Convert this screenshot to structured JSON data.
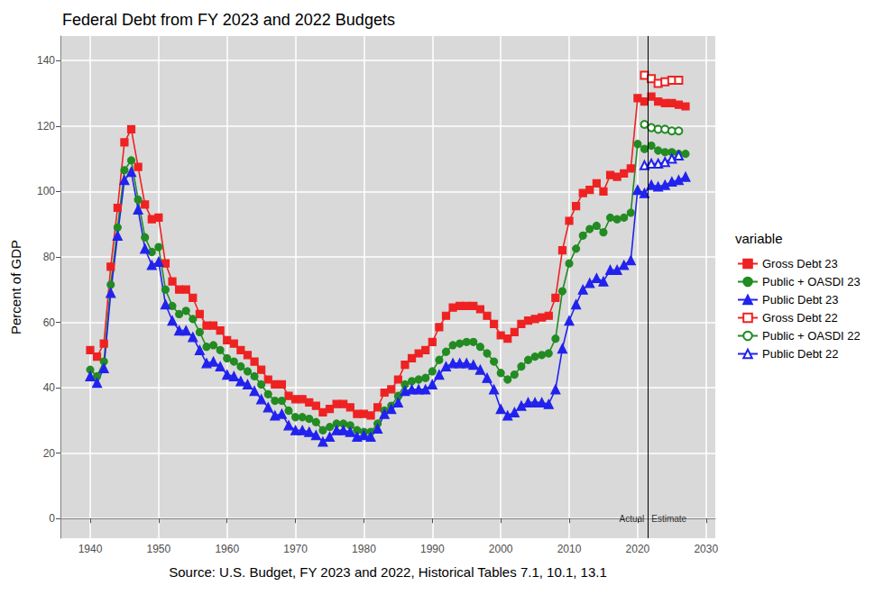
{
  "chart_data": {
    "type": "line",
    "title": "Federal Debt from FY 2023 and 2022 Budgets",
    "x_label": "Source: U.S. Budget, FY 2023 and 2022, Historical Tables 7.1, 10.1, 13.1",
    "y_label": "Percent of GDP",
    "legend_title": "variable",
    "legend": "right",
    "grid": true,
    "xlim": [
      1935.65,
      2031.35
    ],
    "xticks": [
      1940,
      1950,
      1960,
      1970,
      1980,
      1990,
      2000,
      2010,
      2020,
      2030
    ],
    "ylim": [
      -6,
      147.5
    ],
    "yticks": [
      0,
      20,
      40,
      60,
      80,
      100,
      120,
      140
    ],
    "x": [
      1940,
      1941,
      1942,
      1943,
      1944,
      1945,
      1946,
      1947,
      1948,
      1949,
      1950,
      1951,
      1952,
      1953,
      1954,
      1955,
      1956,
      1957,
      1958,
      1959,
      1960,
      1961,
      1962,
      1963,
      1964,
      1965,
      1966,
      1967,
      1968,
      1969,
      1970,
      1971,
      1972,
      1973,
      1974,
      1975,
      1976,
      1977,
      1978,
      1979,
      1980,
      1981,
      1982,
      1983,
      1984,
      1985,
      1986,
      1987,
      1988,
      1989,
      1990,
      1991,
      1992,
      1993,
      1994,
      1995,
      1996,
      1997,
      1998,
      1999,
      2000,
      2001,
      2002,
      2003,
      2004,
      2005,
      2006,
      2007,
      2008,
      2009,
      2010,
      2011,
      2012,
      2013,
      2014,
      2015,
      2016,
      2017,
      2018,
      2019,
      2020,
      2021,
      2022,
      2023,
      2024,
      2025,
      2026,
      2027
    ],
    "series": [
      {
        "name": "Gross Debt 23",
        "color": "#ee2222",
        "marker": "square",
        "line_style": "solid",
        "values": [
          51.5,
          49.5,
          53.5,
          77,
          95,
          115,
          119,
          107.5,
          96,
          91.5,
          92,
          78,
          72.5,
          70,
          70,
          67.5,
          62.5,
          59,
          59,
          57.5,
          54.5,
          53.5,
          51.5,
          50,
          48,
          45.5,
          42.5,
          41,
          41,
          37.5,
          36.5,
          36.5,
          35.5,
          34.5,
          32.5,
          33.5,
          35,
          35,
          34,
          32,
          32,
          31.5,
          34,
          38.5,
          39.5,
          42.5,
          47,
          49,
          50.5,
          51.5,
          54,
          58.5,
          62,
          64.5,
          65,
          65,
          65,
          64,
          62,
          59.5,
          56,
          55,
          57,
          59.5,
          60.5,
          61,
          61.5,
          62,
          67.5,
          82,
          91,
          95.5,
          99.5,
          100.5,
          102.5,
          100,
          105,
          104.5,
          105.5,
          107,
          128.5,
          127.5,
          129,
          127.5,
          127,
          127,
          126.5,
          126
        ]
      },
      {
        "name": "Public + OASDI 23",
        "color": "#228b22",
        "marker": "circle",
        "line_style": "solid",
        "values": [
          45.5,
          43.5,
          48,
          71.5,
          89,
          106.5,
          109.5,
          97.5,
          86,
          81.5,
          83,
          70,
          65,
          62.5,
          63.5,
          61,
          57,
          52.5,
          53,
          51.5,
          49,
          48,
          46.5,
          45,
          43.5,
          41,
          38,
          36,
          36,
          33,
          31,
          31,
          30.5,
          29.5,
          27,
          28,
          29,
          29,
          28.5,
          27,
          26.5,
          26.5,
          29,
          33,
          34.5,
          37.5,
          41,
          42,
          42.5,
          43,
          45,
          48.5,
          51,
          53,
          53.5,
          54,
          54,
          52.5,
          50.5,
          48,
          44.5,
          42.5,
          44,
          46.5,
          48.5,
          49.5,
          50,
          50.5,
          55,
          69.5,
          78,
          82.5,
          86.5,
          88.5,
          89.5,
          87.5,
          92,
          91.5,
          92,
          93.5,
          114.5,
          113,
          114,
          112.5,
          112,
          112,
          111.5,
          111.5
        ]
      },
      {
        "name": "Public Debt 23",
        "color": "#2222ee",
        "marker": "triangle",
        "line_style": "solid",
        "values": [
          43.5,
          41.5,
          46,
          69,
          86.5,
          103.5,
          106,
          94.5,
          82.5,
          77.5,
          78.5,
          65.5,
          60.5,
          57.5,
          57.5,
          55.5,
          51.5,
          47.5,
          48,
          46.5,
          44,
          43.5,
          42,
          41,
          39,
          36.5,
          34,
          31.5,
          32,
          28.5,
          27,
          27,
          26.5,
          25.5,
          23.5,
          25,
          27,
          27,
          26.5,
          25,
          25.5,
          25,
          27.5,
          32,
          33.5,
          35.5,
          39,
          39.5,
          39.5,
          39.5,
          41,
          44,
          46.5,
          47.5,
          47.5,
          47.5,
          47,
          45.5,
          43,
          39.5,
          33.5,
          31.5,
          32.5,
          34.5,
          35.5,
          35.5,
          35.5,
          35,
          39.5,
          52,
          60.5,
          65.5,
          70,
          72,
          73.5,
          72.5,
          76,
          76,
          77.5,
          79,
          100.5,
          99.5,
          102,
          101.5,
          102,
          103,
          103.5,
          104.5
        ]
      },
      {
        "name": "Gross Debt 22",
        "color": "#ee2222",
        "marker": "square-open",
        "line_style": "solid",
        "values": [
          null,
          null,
          null,
          null,
          null,
          null,
          null,
          null,
          null,
          null,
          null,
          null,
          null,
          null,
          null,
          null,
          null,
          null,
          null,
          null,
          null,
          null,
          null,
          null,
          null,
          null,
          null,
          null,
          null,
          null,
          null,
          null,
          null,
          null,
          null,
          null,
          null,
          null,
          null,
          null,
          null,
          null,
          null,
          null,
          null,
          null,
          null,
          null,
          null,
          null,
          null,
          null,
          null,
          null,
          null,
          null,
          null,
          null,
          null,
          null,
          null,
          null,
          null,
          null,
          null,
          null,
          null,
          null,
          null,
          null,
          null,
          null,
          null,
          null,
          null,
          null,
          null,
          null,
          null,
          null,
          null,
          135.5,
          134.5,
          133,
          133.5,
          134,
          134,
          null
        ]
      },
      {
        "name": "Public + OASDI 22",
        "color": "#228b22",
        "marker": "circle-open",
        "line_style": "solid",
        "values": [
          null,
          null,
          null,
          null,
          null,
          null,
          null,
          null,
          null,
          null,
          null,
          null,
          null,
          null,
          null,
          null,
          null,
          null,
          null,
          null,
          null,
          null,
          null,
          null,
          null,
          null,
          null,
          null,
          null,
          null,
          null,
          null,
          null,
          null,
          null,
          null,
          null,
          null,
          null,
          null,
          null,
          null,
          null,
          null,
          null,
          null,
          null,
          null,
          null,
          null,
          null,
          null,
          null,
          null,
          null,
          null,
          null,
          null,
          null,
          null,
          null,
          null,
          null,
          null,
          null,
          null,
          null,
          null,
          null,
          null,
          null,
          null,
          null,
          null,
          null,
          null,
          null,
          null,
          null,
          null,
          null,
          120.5,
          119.5,
          119,
          119,
          118.5,
          118.5,
          null
        ]
      },
      {
        "name": "Public Debt 22",
        "color": "#2222ee",
        "marker": "triangle-open",
        "line_style": "solid",
        "values": [
          null,
          null,
          null,
          null,
          null,
          null,
          null,
          null,
          null,
          null,
          null,
          null,
          null,
          null,
          null,
          null,
          null,
          null,
          null,
          null,
          null,
          null,
          null,
          null,
          null,
          null,
          null,
          null,
          null,
          null,
          null,
          null,
          null,
          null,
          null,
          null,
          null,
          null,
          null,
          null,
          null,
          null,
          null,
          null,
          null,
          null,
          null,
          null,
          null,
          null,
          null,
          null,
          null,
          null,
          null,
          null,
          null,
          null,
          null,
          null,
          null,
          null,
          null,
          null,
          null,
          null,
          null,
          null,
          null,
          null,
          null,
          null,
          null,
          null,
          null,
          null,
          null,
          null,
          null,
          null,
          null,
          108,
          108.5,
          108.5,
          109,
          110,
          111,
          null
        ]
      }
    ],
    "annotations": [
      {
        "type": "vline",
        "x": 2021.5
      },
      {
        "text": "Actual",
        "x": 2021.5,
        "y": 0,
        "align": "right"
      },
      {
        "text": "Estimate",
        "x": 2021.5,
        "y": 0,
        "align": "left"
      }
    ]
  }
}
